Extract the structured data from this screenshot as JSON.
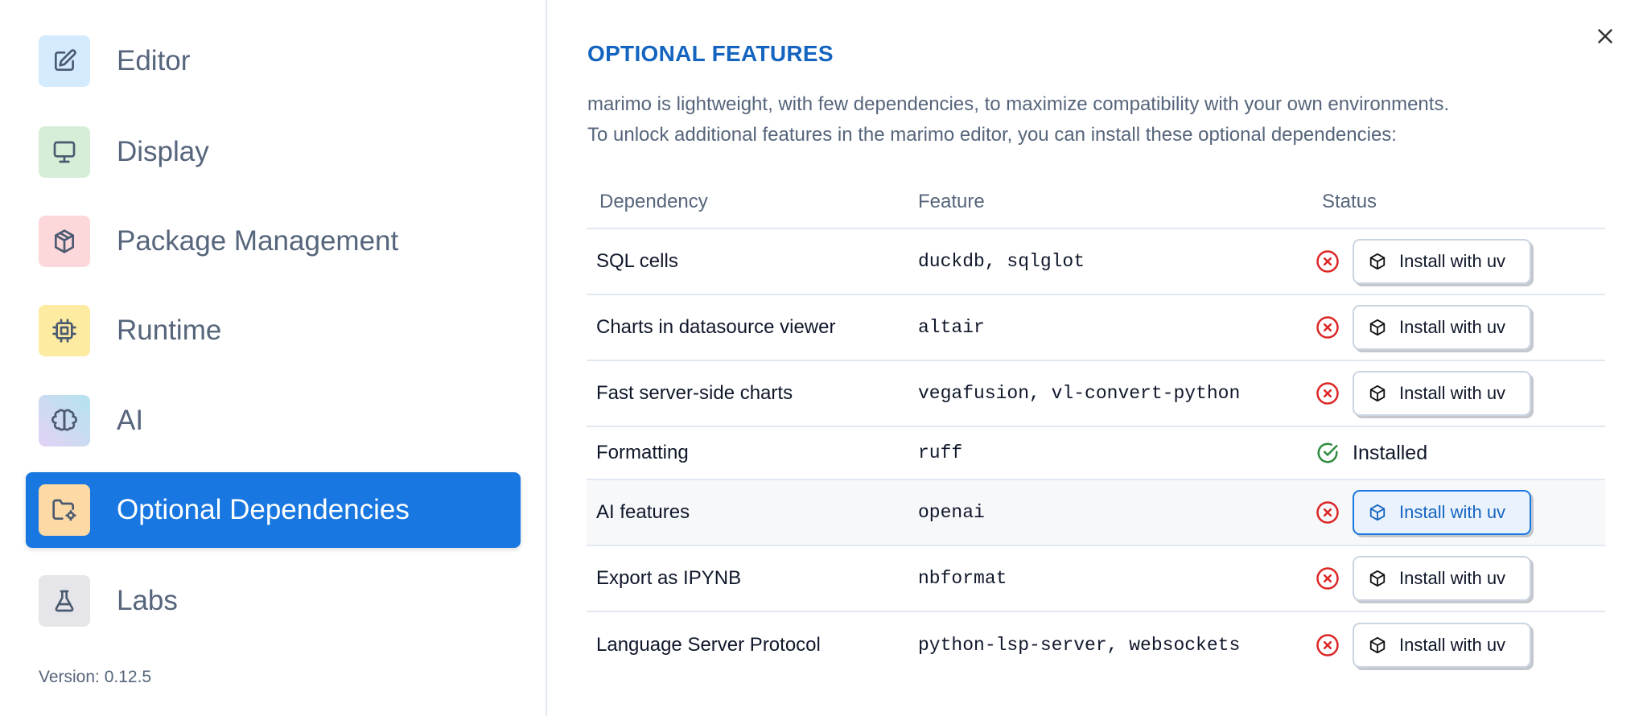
{
  "sidebar": {
    "items": [
      {
        "label": "Editor",
        "icon": "edit-icon",
        "color": "#d3ebfd"
      },
      {
        "label": "Display",
        "icon": "monitor-icon",
        "color": "#d6eed8"
      },
      {
        "label": "Package Management",
        "icon": "package-icon",
        "color": "#fdd8db"
      },
      {
        "label": "Runtime",
        "icon": "cpu-icon",
        "color": "#fdeba2"
      },
      {
        "label": "AI",
        "icon": "brain-icon",
        "color": "#cfdcef"
      },
      {
        "label": "Optional Dependencies",
        "icon": "folder-cog-icon",
        "color": "#fdd9a5",
        "active": true
      },
      {
        "label": "Labs",
        "icon": "flask-icon",
        "color": "#e5e5ea"
      }
    ],
    "version": "Version: 0.12.5",
    "active_color": "#1877e0"
  },
  "main": {
    "title": "OPTIONAL FEATURES",
    "description_line1": "marimo is lightweight, with few dependencies, to maximize compatibility with your own environments.",
    "description_line2": "To unlock additional features in the marimo editor, you can install these optional dependencies:",
    "table": {
      "headers": [
        "Dependency",
        "Feature",
        "Status"
      ],
      "rows": [
        {
          "dependency": "SQL cells",
          "packages": "duckdb, sqlglot",
          "status": "missing",
          "action": "Install with uv"
        },
        {
          "dependency": "Charts in datasource viewer",
          "packages": "altair",
          "status": "missing",
          "action": "Install with uv"
        },
        {
          "dependency": "Fast server-side charts",
          "packages": "vegafusion, vl-convert-python",
          "status": "missing",
          "action": "Install with uv"
        },
        {
          "dependency": "Formatting",
          "packages": "ruff",
          "status": "Installed"
        },
        {
          "dependency": "AI features",
          "packages": "openai",
          "status": "missing",
          "action": "Install with uv"
        },
        {
          "dependency": "Export as IPYNB",
          "packages": "nbformat",
          "status": "missing",
          "action": "Install with uv"
        },
        {
          "dependency": "Language Server Protocol",
          "packages": "python-lsp-server, websockets",
          "status": "missing",
          "action": "Install with uv"
        }
      ]
    },
    "colors": {
      "title": "#1565c0",
      "error": "#dc2626",
      "success": "#2e8b3e"
    }
  }
}
